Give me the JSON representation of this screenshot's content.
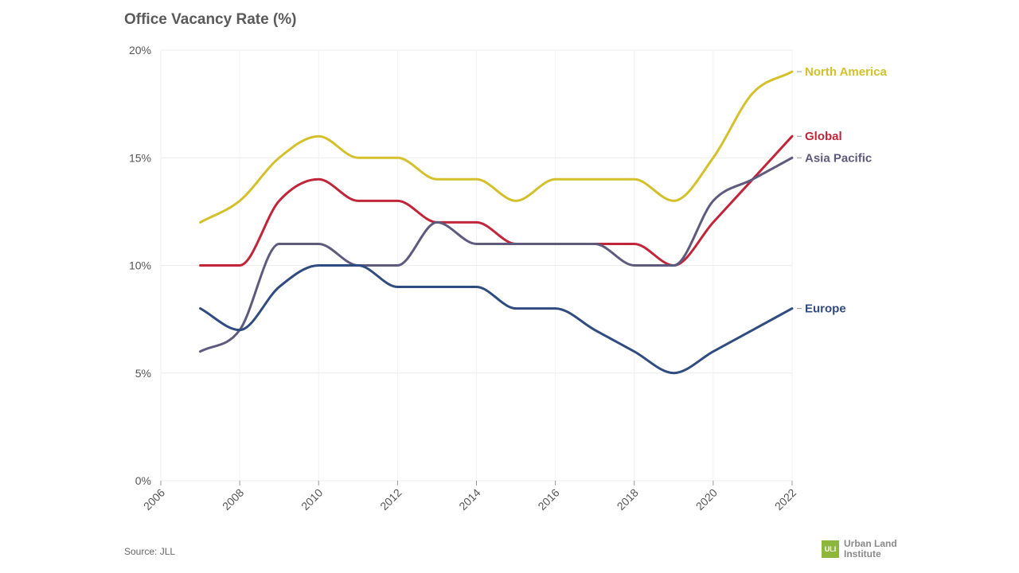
{
  "chart_data": {
    "type": "line",
    "title": "Office Vacancy Rate (%)",
    "xlim": [
      2006,
      2022
    ],
    "ylim": [
      0,
      20
    ],
    "x_ticks": [
      "2006",
      "2008",
      "2010",
      "2012",
      "2014",
      "2016",
      "2018",
      "2020",
      "2022"
    ],
    "y_ticks": [
      "0%",
      "5%",
      "10%",
      "15%",
      "20%"
    ],
    "grid": true,
    "x": [
      2007,
      2008,
      2009,
      2010,
      2011,
      2012,
      2013,
      2014,
      2015,
      2016,
      2017,
      2018,
      2019,
      2020,
      2021,
      2022
    ],
    "series": [
      {
        "name": "North America",
        "color": "#d4c02a",
        "values": [
          12,
          13,
          15,
          16,
          15,
          15,
          14,
          14,
          13,
          14,
          14,
          14,
          13,
          15,
          18,
          19
        ]
      },
      {
        "name": "Global",
        "color": "#c0253a",
        "values": [
          10,
          10,
          13,
          14,
          13,
          13,
          12,
          12,
          11,
          11,
          11,
          11,
          10,
          12,
          14,
          16
        ]
      },
      {
        "name": "Asia Pacific",
        "color": "#5e5a7e",
        "values": [
          6,
          7,
          11,
          11,
          10,
          10,
          12,
          11,
          11,
          11,
          11,
          10,
          10,
          13,
          14,
          15
        ]
      },
      {
        "name": "Europe",
        "color": "#2f4b80",
        "values": [
          8,
          7,
          9,
          10,
          10,
          9,
          9,
          9,
          8,
          8,
          7,
          6,
          5,
          6,
          7,
          8
        ]
      }
    ],
    "source": "Source: JLL"
  },
  "logo": {
    "mark": "ULI",
    "line1": "Urban Land",
    "line2": "Institute"
  }
}
